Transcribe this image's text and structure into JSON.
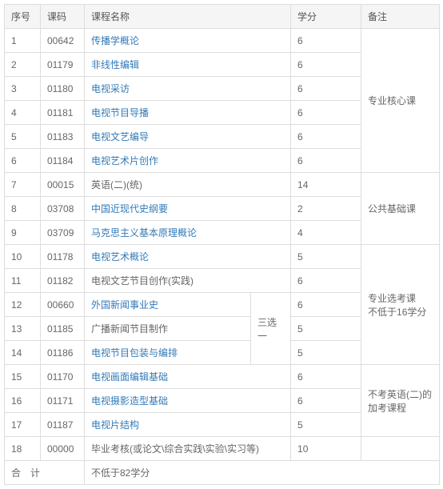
{
  "headers": {
    "seq": "序号",
    "code": "课码",
    "name": "课程名称",
    "credit": "学分",
    "note": "备注"
  },
  "rows": [
    {
      "seq": "1",
      "code": "00642",
      "name": "传播学概论",
      "link": true,
      "credit": "6"
    },
    {
      "seq": "2",
      "code": "01179",
      "name": "非线性编辑",
      "link": true,
      "credit": "6"
    },
    {
      "seq": "3",
      "code": "01180",
      "name": "电视采访",
      "link": true,
      "credit": "6"
    },
    {
      "seq": "4",
      "code": "01181",
      "name": "电视节目导播",
      "link": true,
      "credit": "6"
    },
    {
      "seq": "5",
      "code": "01183",
      "name": "电视文艺编导",
      "link": true,
      "credit": "6"
    },
    {
      "seq": "6",
      "code": "01184",
      "name": "电视艺术片创作",
      "link": true,
      "credit": "6"
    },
    {
      "seq": "7",
      "code": "00015",
      "name": "英语(二)(统)",
      "link": false,
      "credit": "14"
    },
    {
      "seq": "8",
      "code": "03708",
      "name": "中国近现代史纲要",
      "link": true,
      "credit": "2"
    },
    {
      "seq": "9",
      "code": "03709",
      "name": "马克思主义基本原理概论",
      "link": true,
      "credit": "4"
    },
    {
      "seq": "10",
      "code": "01178",
      "name": "电视艺术概论",
      "link": true,
      "credit": "5"
    },
    {
      "seq": "11",
      "code": "01182",
      "name": "电视文艺节目创作(实践)",
      "link": false,
      "credit": "6"
    },
    {
      "seq": "12",
      "code": "00660",
      "name": "外国新闻事业史",
      "link": true,
      "credit": "6"
    },
    {
      "seq": "13",
      "code": "01185",
      "name": "广播新闻节目制作",
      "link": false,
      "credit": "5"
    },
    {
      "seq": "14",
      "code": "01186",
      "name": "电视节目包装与编排",
      "link": true,
      "credit": "5"
    },
    {
      "seq": "15",
      "code": "01170",
      "name": "电视画面编辑基础",
      "link": true,
      "credit": "6"
    },
    {
      "seq": "16",
      "code": "01171",
      "name": "电视摄影造型基础",
      "link": true,
      "credit": "6"
    },
    {
      "seq": "17",
      "code": "01187",
      "name": "电视片结构",
      "link": true,
      "credit": "5"
    },
    {
      "seq": "18",
      "code": "00000",
      "name": "毕业考核(或论文\\综合实践\\实验\\实习等)",
      "link": false,
      "credit": "10"
    }
  ],
  "opt_label": "三选一",
  "notes": {
    "g1": "专业核心课",
    "g2": "公共基础课",
    "g3": "专业选考课\n不低于16学分",
    "g4": "不考英语(二)的加考课程"
  },
  "footer": {
    "label": "合　计",
    "text": "不低于82学分"
  }
}
